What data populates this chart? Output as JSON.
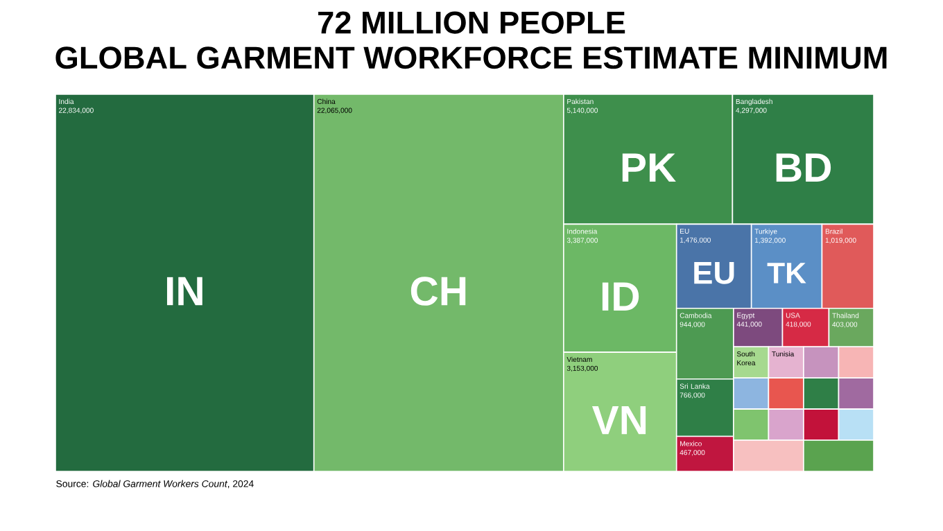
{
  "chart_data": {
    "type": "other",
    "title": "72 MILLION PEOPLE\nGLOBAL GARMENT WORKFORCE ESTIMATE MINIMUM",
    "categories": [
      "India",
      "China",
      "Pakistan",
      "Bangladesh",
      "Indonesia",
      "Vietnam",
      "EU",
      "Turkiye",
      "Brazil",
      "Cambodia",
      "Sri Lanka",
      "Mexico",
      "Egypt",
      "USA",
      "Thailand",
      "South Korea",
      "Tunisia",
      null,
      null,
      null,
      null,
      null,
      null,
      null,
      null,
      null,
      null,
      null,
      null
    ],
    "values": [
      22834000,
      22065000,
      5140000,
      4297000,
      3387000,
      3153000,
      1476000,
      1392000,
      1019000,
      944000,
      766000,
      467000,
      441000,
      418000,
      403000,
      null,
      null,
      null,
      null,
      null,
      null,
      null,
      null,
      null,
      null,
      null,
      null,
      null,
      null
    ],
    "value_labels": [
      "22,834,000",
      "22,065,000",
      "5,140,000",
      "4,297,000",
      "3,387,000",
      "3,153,000",
      "1,476,000",
      "1,392,000",
      "1,019,000",
      "944,000",
      "766,000",
      "467,000",
      "441,000",
      "418,000",
      "403,000",
      null,
      null,
      null,
      null,
      null,
      null,
      null,
      null,
      null,
      null,
      null,
      null,
      null,
      null
    ],
    "colors": [
      "#236b3f",
      "#73b96a",
      "#3e8f4c",
      "#2f7f47",
      "#6cb865",
      "#8fcf7d",
      "#4a74a8",
      "#5b8fc6",
      "#e05a5a",
      "#4d9a52",
      "#2f7f47",
      "#c0163f",
      "#7d4a7e",
      "#d62a45",
      "#6aa85e",
      "#a6d98f",
      "#e5b3d0",
      "#c693be",
      "#f7b5b5",
      "#8db5e0",
      "#e8564f",
      "#2f7f47",
      "#a06aa0",
      "#7fc46e",
      "#d9a4cc",
      "#c2123a",
      "#b8e0f5",
      "#f7c0c0",
      "#5aa34f"
    ],
    "annotations": [
      {
        "text": "IN",
        "x": "India"
      },
      {
        "text": "CH",
        "x": "China"
      },
      {
        "text": "PK",
        "x": "Pakistan"
      },
      {
        "text": "BD",
        "x": "Bangladesh"
      },
      {
        "text": "ID",
        "x": "Indonesia"
      },
      {
        "text": "VN",
        "x": "Vietnam"
      },
      {
        "text": "EU",
        "x": "EU"
      },
      {
        "text": "TK",
        "x": "Turkiye"
      },
      "Source: *Global Garment Workers Count*, 2024"
    ]
  }
}
